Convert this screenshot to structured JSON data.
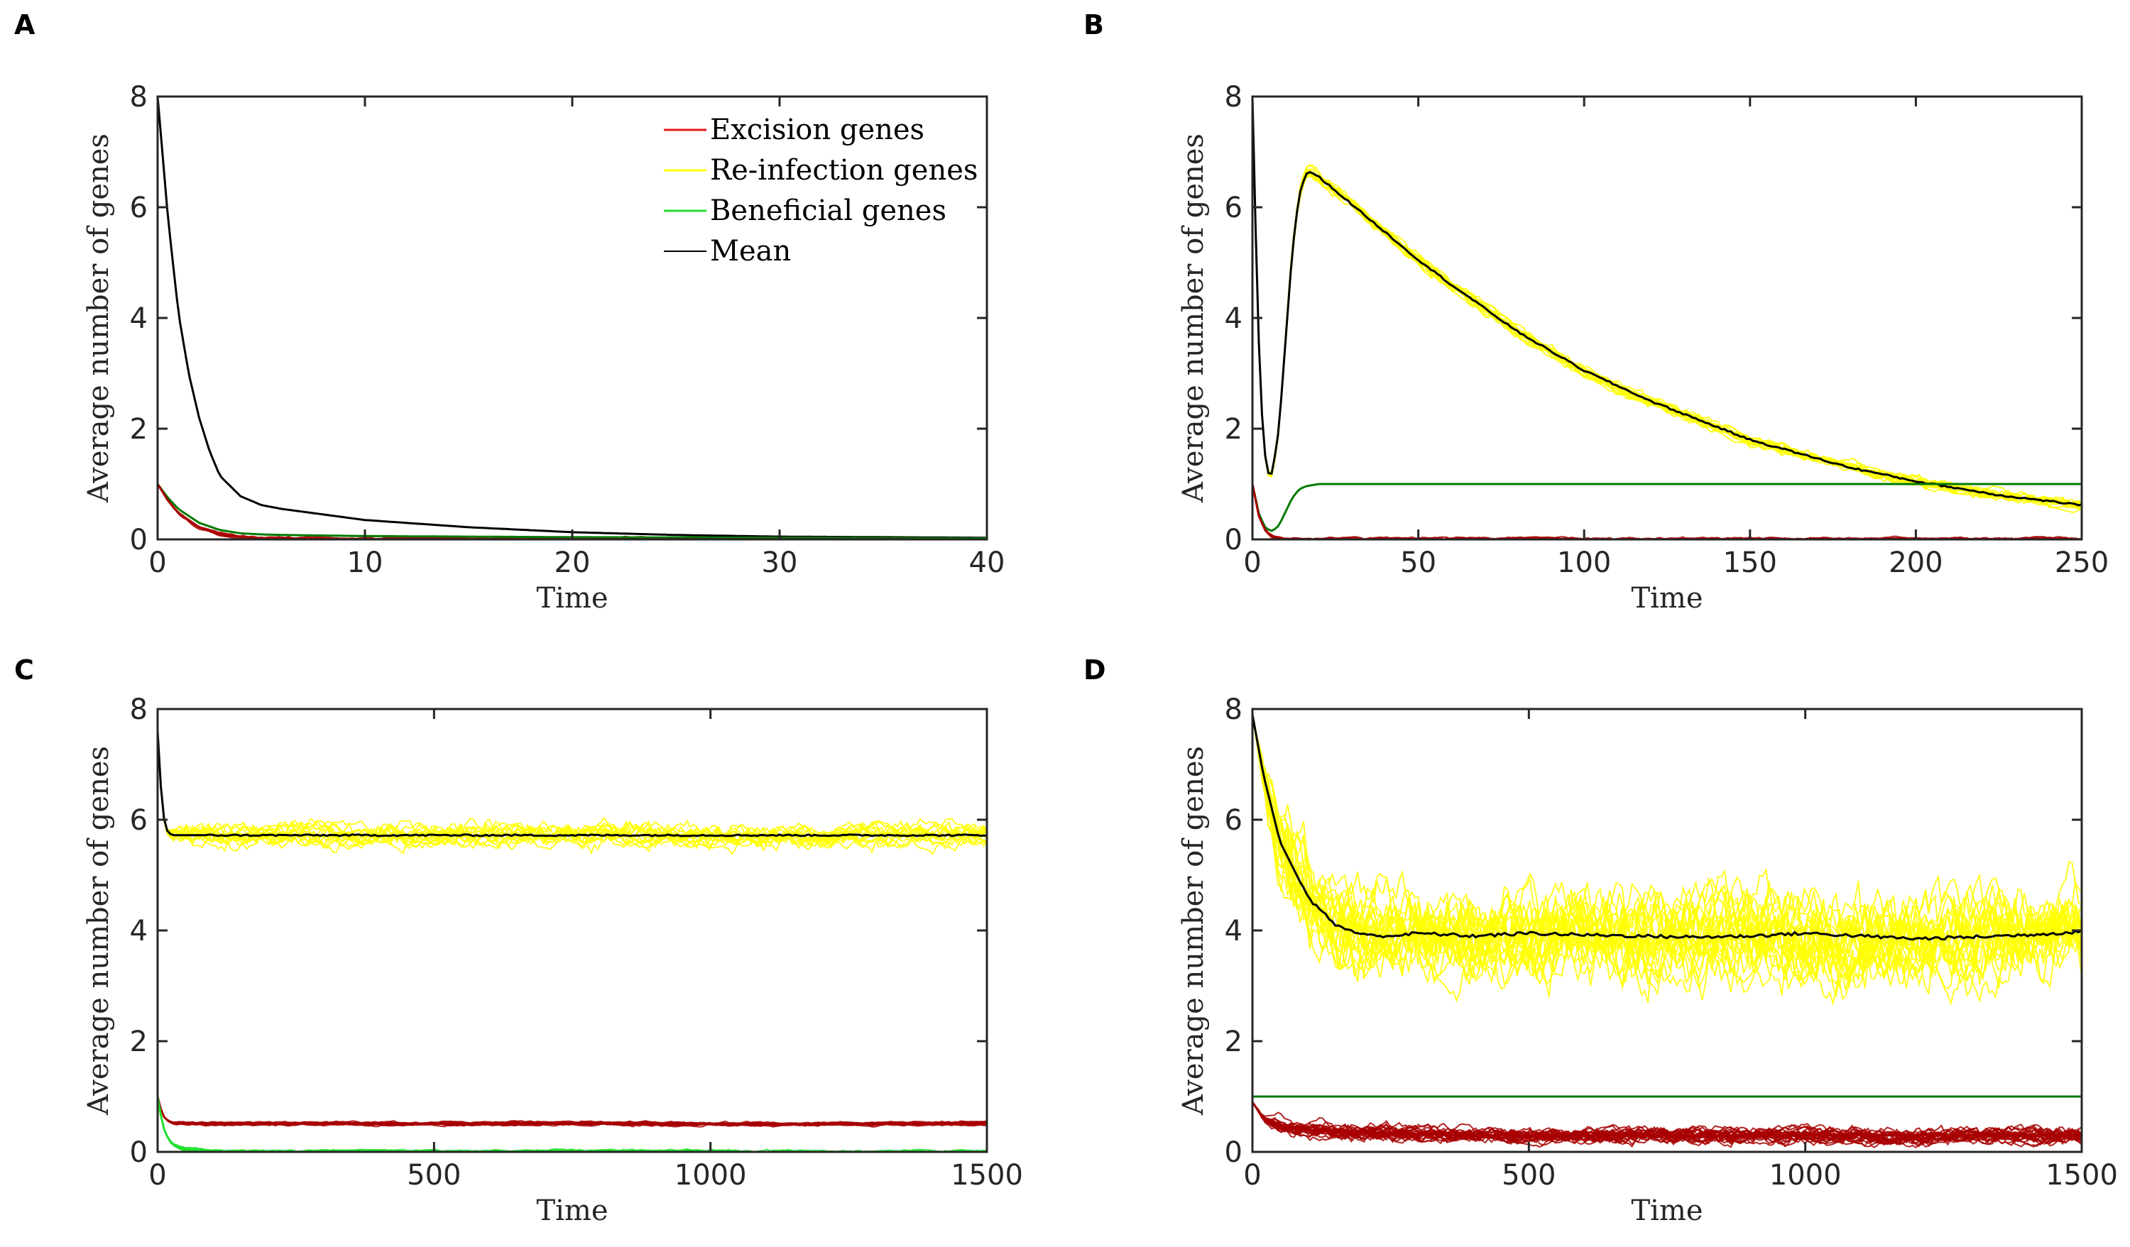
{
  "colors": {
    "excision": "#e8171a",
    "excision_dark": "#a80000",
    "reinfection": "#ffff00",
    "beneficial": "#22e02e",
    "beneficial_dark": "#007a00",
    "mean": "#000000"
  },
  "legend": {
    "excision": "Excision genes",
    "reinfection": "Re-infection genes",
    "beneficial": "Beneficial genes",
    "mean": "Mean"
  },
  "chart_data": [
    {
      "panel": "A",
      "type": "line",
      "xlabel": "Time",
      "ylabel": "Average number of genes",
      "xlim": [
        0,
        40
      ],
      "ylim": [
        0,
        8
      ],
      "xticks": [
        "0",
        "10",
        "20",
        "30",
        "40"
      ],
      "yticks": [
        "0",
        "2",
        "4",
        "6",
        "8"
      ],
      "legend_position": "top-right",
      "series": [
        {
          "name": "Re-infection genes",
          "color": "reinfection",
          "x": [
            0,
            0.5,
            1,
            1.5,
            2,
            2.5,
            3,
            4,
            5,
            6,
            8,
            10,
            15,
            20,
            25,
            30,
            35,
            40
          ],
          "y": [
            8,
            5.8,
            4.1,
            3.0,
            2.2,
            1.6,
            1.15,
            0.78,
            0.62,
            0.55,
            0.45,
            0.35,
            0.22,
            0.13,
            0.08,
            0.05,
            0.04,
            0.03
          ]
        },
        {
          "name": "Beneficial genes",
          "color": "beneficial_dark",
          "x": [
            0,
            0.5,
            1,
            2,
            3,
            4,
            5,
            6,
            10,
            20,
            30,
            40
          ],
          "y": [
            1.0,
            0.75,
            0.55,
            0.3,
            0.17,
            0.11,
            0.09,
            0.08,
            0.06,
            0.04,
            0.03,
            0.02
          ]
        },
        {
          "name": "Excision genes",
          "color": "excision_dark",
          "x": [
            0,
            0.5,
            1,
            2,
            3,
            4,
            5,
            10,
            40
          ],
          "y": [
            1.0,
            0.7,
            0.48,
            0.22,
            0.1,
            0.05,
            0.02,
            0.005,
            0
          ]
        }
      ]
    },
    {
      "panel": "B",
      "type": "line",
      "xlabel": "Time",
      "ylabel": "Average number of genes",
      "xlim": [
        0,
        250
      ],
      "ylim": [
        0,
        8
      ],
      "xticks": [
        "0",
        "50",
        "100",
        "150",
        "200",
        "250"
      ],
      "yticks": [
        "0",
        "2",
        "4",
        "6",
        "8"
      ],
      "series": [
        {
          "name": "Re-infection genes",
          "color": "reinfection",
          "x": [
            0,
            1,
            2,
            3,
            4,
            5,
            6,
            8,
            10,
            12,
            14,
            16,
            17,
            20,
            25,
            30,
            40,
            50,
            60,
            80,
            100,
            120,
            150,
            180,
            200,
            225,
            250
          ],
          "y": [
            8,
            5.5,
            3.4,
            2.1,
            1.4,
            1.15,
            1.2,
            2.0,
            3.6,
            5.2,
            6.2,
            6.6,
            6.65,
            6.55,
            6.3,
            6.05,
            5.55,
            5.05,
            4.6,
            3.75,
            3.05,
            2.5,
            1.8,
            1.3,
            1.05,
            0.8,
            0.62
          ]
        },
        {
          "name": "Beneficial genes",
          "color": "beneficial_dark",
          "x": [
            0,
            2,
            4,
            6,
            8,
            10,
            12,
            14,
            16,
            18,
            20,
            30,
            250
          ],
          "y": [
            1.0,
            0.45,
            0.2,
            0.15,
            0.25,
            0.5,
            0.75,
            0.9,
            0.96,
            0.98,
            1.0,
            1.0,
            1.0
          ]
        },
        {
          "name": "Excision genes",
          "color": "excision_dark",
          "x": [
            0,
            2,
            4,
            6,
            10,
            250
          ],
          "y": [
            1.0,
            0.4,
            0.15,
            0.05,
            0,
            0
          ]
        }
      ]
    },
    {
      "panel": "C",
      "type": "line",
      "xlabel": "Time",
      "ylabel": "Average number of genes",
      "xlim": [
        0,
        1500
      ],
      "ylim": [
        0,
        8
      ],
      "xticks": [
        "0",
        "500",
        "1000",
        "1500"
      ],
      "yticks": [
        "0",
        "2",
        "4",
        "6",
        "8"
      ],
      "series": [
        {
          "name": "Re-infection genes",
          "color": "reinfection",
          "x": [
            0,
            5,
            10,
            15,
            20,
            30,
            40,
            60,
            100,
            200,
            400,
            600,
            800,
            1000,
            1200,
            1400,
            1500
          ],
          "y": [
            7.6,
            6.7,
            6.1,
            5.85,
            5.75,
            5.72,
            5.72,
            5.72,
            5.72,
            5.72,
            5.72,
            5.72,
            5.72,
            5.72,
            5.72,
            5.72,
            5.72
          ]
        },
        {
          "name": "Excision genes",
          "color": "excision_dark",
          "x": [
            0,
            5,
            10,
            20,
            30,
            100,
            500,
            1000,
            1500
          ],
          "y": [
            1.0,
            0.8,
            0.65,
            0.55,
            0.52,
            0.51,
            0.51,
            0.51,
            0.51
          ]
        },
        {
          "name": "Beneficial genes",
          "color": "beneficial",
          "x": [
            0,
            5,
            10,
            20,
            30,
            50,
            80,
            100,
            150,
            1500
          ],
          "y": [
            1.0,
            0.7,
            0.45,
            0.22,
            0.12,
            0.05,
            0.02,
            0.01,
            0,
            0
          ]
        }
      ]
    },
    {
      "panel": "D",
      "type": "line",
      "xlabel": "Time",
      "ylabel": "Average number of genes",
      "xlim": [
        0,
        1500
      ],
      "ylim": [
        0,
        8
      ],
      "xticks": [
        "0",
        "500",
        "1000",
        "1500"
      ],
      "yticks": [
        "0",
        "2",
        "4",
        "6",
        "8"
      ],
      "series": [
        {
          "name": "Re-infection genes",
          "color": "reinfection",
          "x": [
            0,
            20,
            50,
            100,
            150,
            200,
            250,
            300,
            400,
            500,
            600,
            700,
            800,
            900,
            1000,
            1100,
            1200,
            1300,
            1400,
            1500
          ],
          "y": [
            7.9,
            6.8,
            5.6,
            4.6,
            4.1,
            3.92,
            3.9,
            3.95,
            3.9,
            3.95,
            3.92,
            3.9,
            3.88,
            3.9,
            3.95,
            3.9,
            3.85,
            3.88,
            3.92,
            3.98
          ]
        },
        {
          "name": "Beneficial genes",
          "color": "beneficial_dark",
          "x": [
            0,
            1500
          ],
          "y": [
            1.0,
            1.0
          ]
        },
        {
          "name": "Excision genes",
          "color": "excision_dark",
          "x": [
            0,
            20,
            50,
            100,
            150,
            200,
            300,
            400,
            500,
            700,
            1000,
            1200,
            1500
          ],
          "y": [
            0.9,
            0.6,
            0.45,
            0.4,
            0.37,
            0.35,
            0.32,
            0.3,
            0.3,
            0.3,
            0.3,
            0.3,
            0.3
          ]
        }
      ]
    }
  ]
}
